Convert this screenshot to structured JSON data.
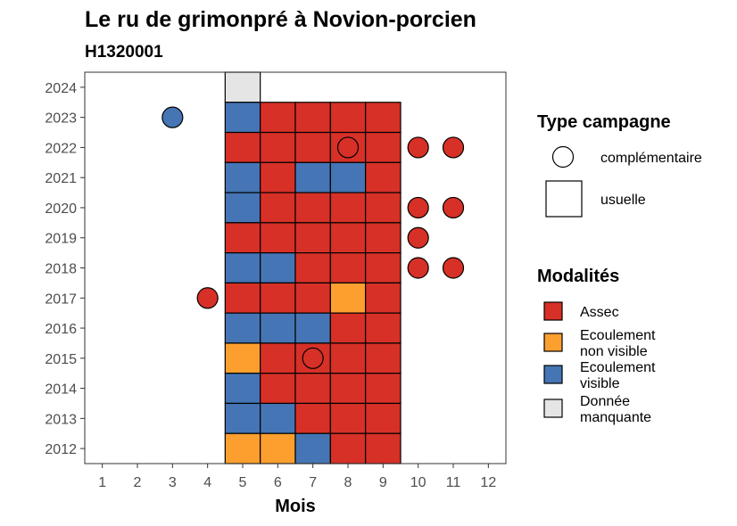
{
  "chart_data": {
    "type": "heatmap",
    "title": "Le ru de grimonpré à Novion-porcien",
    "subtitle": "H1320001",
    "xlabel": "Mois",
    "ylabel": "",
    "x_ticks": [
      "1",
      "2",
      "3",
      "4",
      "5",
      "6",
      "7",
      "8",
      "9",
      "10",
      "11",
      "12"
    ],
    "y_ticks": [
      "2012",
      "2013",
      "2014",
      "2015",
      "2016",
      "2017",
      "2018",
      "2019",
      "2020",
      "2021",
      "2022",
      "2023",
      "2024"
    ],
    "xlim": [
      0.5,
      12.5
    ],
    "ylim": [
      2011.5,
      2024.5
    ],
    "grid": false,
    "legend_position": "right",
    "shape_legend": {
      "title": "Type campagne",
      "items": [
        {
          "label": "complémentaire",
          "shape": "circle"
        },
        {
          "label": "usuelle",
          "shape": "square"
        }
      ]
    },
    "color_legend": {
      "title": "Modalités",
      "items": [
        {
          "key": "assec",
          "label": [
            "Assec"
          ],
          "color": "#d73027"
        },
        {
          "key": "nonvisible",
          "label": [
            "Ecoulement",
            "non visible"
          ],
          "color": "#fd9f2f"
        },
        {
          "key": "visible",
          "label": [
            "Ecoulement",
            "visible"
          ],
          "color": "#4575b4"
        },
        {
          "key": "manquante",
          "label": [
            "Donnée",
            "manquante"
          ],
          "color": "#e5e5e5"
        }
      ]
    },
    "usuelle": [
      {
        "year": 2024,
        "month": 5,
        "value": "manquante"
      },
      {
        "year": 2023,
        "month": 5,
        "value": "visible"
      },
      {
        "year": 2023,
        "month": 6,
        "value": "assec"
      },
      {
        "year": 2023,
        "month": 7,
        "value": "assec"
      },
      {
        "year": 2023,
        "month": 8,
        "value": "assec"
      },
      {
        "year": 2023,
        "month": 9,
        "value": "assec"
      },
      {
        "year": 2022,
        "month": 5,
        "value": "assec"
      },
      {
        "year": 2022,
        "month": 6,
        "value": "assec"
      },
      {
        "year": 2022,
        "month": 7,
        "value": "assec"
      },
      {
        "year": 2022,
        "month": 8,
        "value": "assec"
      },
      {
        "year": 2022,
        "month": 9,
        "value": "assec"
      },
      {
        "year": 2021,
        "month": 5,
        "value": "visible"
      },
      {
        "year": 2021,
        "month": 6,
        "value": "assec"
      },
      {
        "year": 2021,
        "month": 7,
        "value": "visible"
      },
      {
        "year": 2021,
        "month": 8,
        "value": "visible"
      },
      {
        "year": 2021,
        "month": 9,
        "value": "assec"
      },
      {
        "year": 2020,
        "month": 5,
        "value": "visible"
      },
      {
        "year": 2020,
        "month": 6,
        "value": "assec"
      },
      {
        "year": 2020,
        "month": 7,
        "value": "assec"
      },
      {
        "year": 2020,
        "month": 8,
        "value": "assec"
      },
      {
        "year": 2020,
        "month": 9,
        "value": "assec"
      },
      {
        "year": 2019,
        "month": 5,
        "value": "assec"
      },
      {
        "year": 2019,
        "month": 6,
        "value": "assec"
      },
      {
        "year": 2019,
        "month": 7,
        "value": "assec"
      },
      {
        "year": 2019,
        "month": 8,
        "value": "assec"
      },
      {
        "year": 2019,
        "month": 9,
        "value": "assec"
      },
      {
        "year": 2018,
        "month": 5,
        "value": "visible"
      },
      {
        "year": 2018,
        "month": 6,
        "value": "visible"
      },
      {
        "year": 2018,
        "month": 7,
        "value": "assec"
      },
      {
        "year": 2018,
        "month": 8,
        "value": "assec"
      },
      {
        "year": 2018,
        "month": 9,
        "value": "assec"
      },
      {
        "year": 2017,
        "month": 5,
        "value": "assec"
      },
      {
        "year": 2017,
        "month": 6,
        "value": "assec"
      },
      {
        "year": 2017,
        "month": 7,
        "value": "assec"
      },
      {
        "year": 2017,
        "month": 8,
        "value": "nonvisible"
      },
      {
        "year": 2017,
        "month": 9,
        "value": "assec"
      },
      {
        "year": 2016,
        "month": 5,
        "value": "visible"
      },
      {
        "year": 2016,
        "month": 6,
        "value": "visible"
      },
      {
        "year": 2016,
        "month": 7,
        "value": "visible"
      },
      {
        "year": 2016,
        "month": 8,
        "value": "assec"
      },
      {
        "year": 2016,
        "month": 9,
        "value": "assec"
      },
      {
        "year": 2015,
        "month": 5,
        "value": "nonvisible"
      },
      {
        "year": 2015,
        "month": 6,
        "value": "assec"
      },
      {
        "year": 2015,
        "month": 7,
        "value": "assec"
      },
      {
        "year": 2015,
        "month": 8,
        "value": "assec"
      },
      {
        "year": 2015,
        "month": 9,
        "value": "assec"
      },
      {
        "year": 2014,
        "month": 5,
        "value": "visible"
      },
      {
        "year": 2014,
        "month": 6,
        "value": "assec"
      },
      {
        "year": 2014,
        "month": 7,
        "value": "assec"
      },
      {
        "year": 2014,
        "month": 8,
        "value": "assec"
      },
      {
        "year": 2014,
        "month": 9,
        "value": "assec"
      },
      {
        "year": 2013,
        "month": 5,
        "value": "visible"
      },
      {
        "year": 2013,
        "month": 6,
        "value": "visible"
      },
      {
        "year": 2013,
        "month": 7,
        "value": "assec"
      },
      {
        "year": 2013,
        "month": 8,
        "value": "assec"
      },
      {
        "year": 2013,
        "month": 9,
        "value": "assec"
      },
      {
        "year": 2012,
        "month": 5,
        "value": "nonvisible"
      },
      {
        "year": 2012,
        "month": 6,
        "value": "nonvisible"
      },
      {
        "year": 2012,
        "month": 7,
        "value": "visible"
      },
      {
        "year": 2012,
        "month": 8,
        "value": "assec"
      },
      {
        "year": 2012,
        "month": 9,
        "value": "assec"
      }
    ],
    "complementaire": [
      {
        "year": 2023,
        "month": 3,
        "value": "visible"
      },
      {
        "year": 2022,
        "month": 8,
        "value": "assec"
      },
      {
        "year": 2022,
        "month": 10,
        "value": "assec"
      },
      {
        "year": 2022,
        "month": 11,
        "value": "assec"
      },
      {
        "year": 2020,
        "month": 10,
        "value": "assec"
      },
      {
        "year": 2020,
        "month": 11,
        "value": "assec"
      },
      {
        "year": 2019,
        "month": 10,
        "value": "assec"
      },
      {
        "year": 2018,
        "month": 10,
        "value": "assec"
      },
      {
        "year": 2018,
        "month": 11,
        "value": "assec"
      },
      {
        "year": 2017,
        "month": 4,
        "value": "assec"
      },
      {
        "year": 2015,
        "month": 7,
        "value": "assec"
      }
    ]
  }
}
